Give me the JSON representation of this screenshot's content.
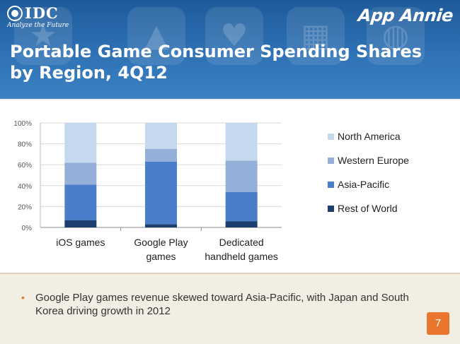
{
  "header": {
    "logo_name": "IDC",
    "logo_tagline": "Analyze the Future",
    "brand": "App Annie",
    "title_line1": "Portable Game Consumer Spending Shares",
    "title_line2": "by Region, 4Q12",
    "tile_icons": [
      "star-icon",
      "arrow-up-icon",
      "heart-icon",
      "calendar-icon",
      "globe-icon"
    ]
  },
  "chart_data": {
    "type": "bar",
    "stacked": true,
    "categories": [
      "iOS games",
      "Google Play games",
      "Dedicated handheld games"
    ],
    "category_lines": [
      [
        "iOS games"
      ],
      [
        "Google Play",
        "games"
      ],
      [
        "Dedicated",
        "handheld games"
      ]
    ],
    "series": [
      {
        "name": "Rest of World",
        "values": [
          7,
          3,
          6
        ],
        "color": "#1c3f6e"
      },
      {
        "name": "Asia-Pacific",
        "values": [
          34,
          60,
          28
        ],
        "color": "#4a7ecb"
      },
      {
        "name": "Western Europe",
        "values": [
          21,
          12,
          30
        ],
        "color": "#94b0d8"
      },
      {
        "name": "North America",
        "values": [
          38,
          25,
          36
        ],
        "color": "#c5d8ee"
      }
    ],
    "legend_order": [
      "North America",
      "Western Europe",
      "Asia-Pacific",
      "Rest of World"
    ],
    "y_ticks": [
      "0%",
      "20%",
      "40%",
      "60%",
      "80%",
      "100%"
    ],
    "ylim": [
      0,
      100
    ],
    "grid": true,
    "legend_position": "right"
  },
  "bullet": {
    "text": "Google Play games revenue skewed toward Asia-Pacific, with Japan and South Korea driving growth in 2012",
    "marker": "•"
  },
  "page_number": "7",
  "colors": {
    "header_blue": "#2f72b5",
    "accent_orange": "#e8762d",
    "background": "#f3eee3"
  }
}
